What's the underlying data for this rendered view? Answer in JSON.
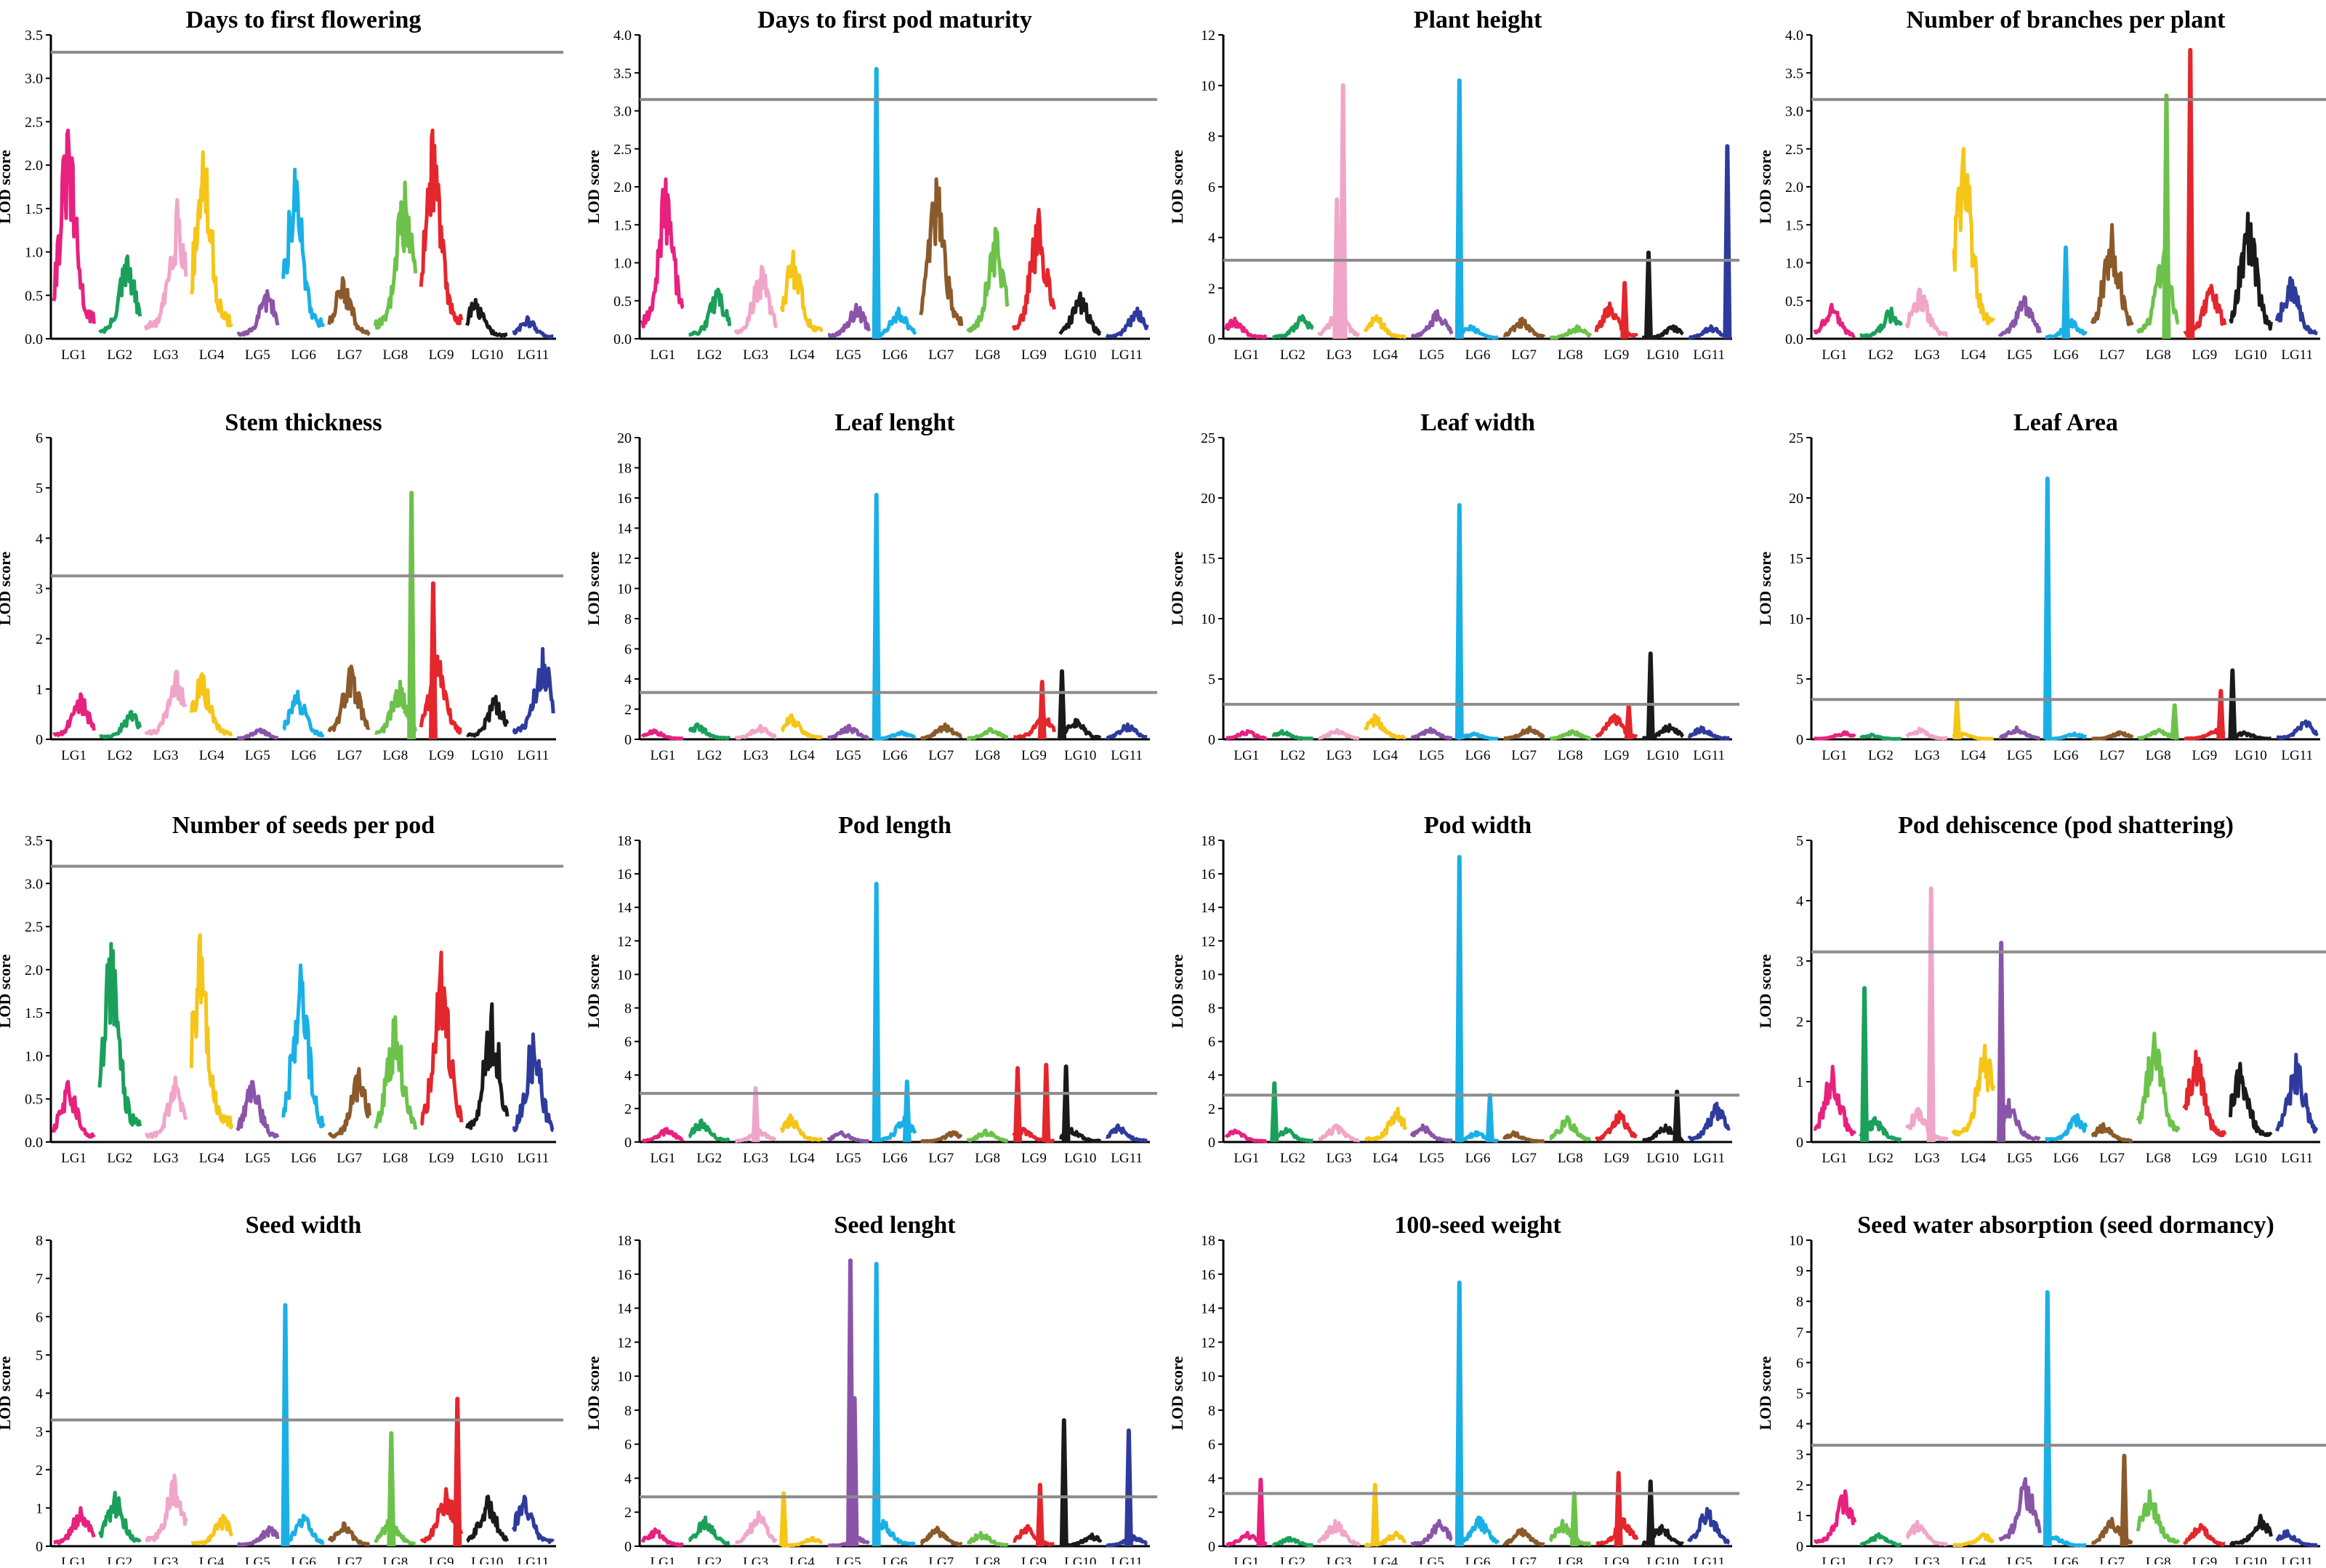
{
  "figure": {
    "ylabel": "LOD score",
    "linkage_groups": [
      "LG1",
      "LG2",
      "LG3",
      "LG4",
      "LG5",
      "LG6",
      "LG7",
      "LG8",
      "LG9",
      "LG10",
      "LG11"
    ],
    "lg_colors": [
      "#e8217f",
      "#1aa05a",
      "#f0a6c8",
      "#f5c518",
      "#8a55a8",
      "#1ab0e6",
      "#8b5a2b",
      "#6cc24a",
      "#e4262d",
      "#1a1a1a",
      "#2e3b9c"
    ],
    "threshold_color": "#8c8c8c"
  },
  "chart_data": [
    {
      "type": "line",
      "title": "Days to first flowering",
      "ylabel": "LOD score",
      "ylim": [
        0,
        3.5
      ],
      "yticks": [
        0,
        0.5,
        1.0,
        1.5,
        2.0,
        2.5,
        3.0,
        3.5
      ],
      "threshold": 3.3,
      "lg_max": [
        2.4,
        0.95,
        1.6,
        2.15,
        0.55,
        1.95,
        0.7,
        1.8,
        2.4,
        0.45,
        0.25
      ],
      "spikes": []
    },
    {
      "type": "line",
      "title": "Days to first pod maturity",
      "ylabel": "LOD score",
      "ylim": [
        0,
        4.0
      ],
      "yticks": [
        0,
        0.5,
        1.0,
        1.5,
        2.0,
        2.5,
        3.0,
        3.5,
        4.0
      ],
      "threshold": 3.15,
      "lg_max": [
        2.1,
        0.65,
        0.95,
        1.15,
        0.45,
        0.4,
        2.1,
        1.45,
        1.7,
        0.6,
        0.4
      ],
      "spikes": [
        {
          "lg": 6,
          "pos": 0.05,
          "value": 3.55
        }
      ]
    },
    {
      "type": "line",
      "title": "Plant height",
      "ylabel": "LOD score",
      "ylim": [
        0,
        12
      ],
      "yticks": [
        0,
        2,
        4,
        6,
        8,
        10,
        12
      ],
      "threshold": 3.1,
      "lg_max": [
        0.8,
        0.9,
        1.2,
        0.9,
        1.1,
        0.5,
        0.8,
        0.5,
        1.4,
        0.5,
        0.5
      ],
      "spikes": [
        {
          "lg": 3,
          "pos": 0.45,
          "value": 5.5
        },
        {
          "lg": 3,
          "pos": 0.6,
          "value": 10.0
        },
        {
          "lg": 6,
          "pos": 0.05,
          "value": 10.2
        },
        {
          "lg": 9,
          "pos": 0.7,
          "value": 2.2
        },
        {
          "lg": 10,
          "pos": 0.15,
          "value": 3.4
        },
        {
          "lg": 11,
          "pos": 0.95,
          "value": 7.6
        }
      ]
    },
    {
      "type": "line",
      "title": "Number of branches per plant",
      "ylabel": "LOD score",
      "ylim": [
        0,
        4.0
      ],
      "yticks": [
        0,
        0.5,
        1.0,
        1.5,
        2.0,
        2.5,
        3.0,
        3.5,
        4.0
      ],
      "threshold": 3.15,
      "lg_max": [
        0.45,
        0.4,
        0.65,
        2.5,
        0.55,
        0.25,
        1.5,
        1.15,
        0.7,
        1.65,
        0.8
      ],
      "spikes": [
        {
          "lg": 6,
          "pos": 0.5,
          "value": 1.2
        },
        {
          "lg": 8,
          "pos": 0.7,
          "value": 3.2
        },
        {
          "lg": 9,
          "pos": 0.15,
          "value": 3.8
        }
      ]
    },
    {
      "type": "line",
      "title": "Stem thickness",
      "ylabel": "LOD score",
      "ylim": [
        0,
        6
      ],
      "yticks": [
        0,
        1,
        2,
        3,
        4,
        5,
        6
      ],
      "threshold": 3.25,
      "lg_max": [
        0.9,
        0.55,
        1.35,
        1.3,
        0.2,
        0.95,
        1.45,
        1.15,
        1.65,
        0.85,
        1.8
      ],
      "spikes": [
        {
          "lg": 8,
          "pos": 0.9,
          "value": 4.9
        },
        {
          "lg": 9,
          "pos": 0.3,
          "value": 3.1
        }
      ]
    },
    {
      "type": "line",
      "title": "Leaf lenght",
      "ylabel": "LOD score",
      "ylim": [
        0,
        20
      ],
      "yticks": [
        0,
        2,
        4,
        6,
        8,
        10,
        12,
        14,
        16,
        18,
        20
      ],
      "threshold": 3.1,
      "lg_max": [
        0.6,
        1.0,
        0.9,
        1.6,
        0.9,
        0.5,
        1.0,
        0.7,
        1.7,
        1.3,
        1.0
      ],
      "spikes": [
        {
          "lg": 6,
          "pos": 0.05,
          "value": 16.2
        },
        {
          "lg": 9,
          "pos": 0.7,
          "value": 3.8
        },
        {
          "lg": 10,
          "pos": 0.05,
          "value": 4.5
        }
      ]
    },
    {
      "type": "line",
      "title": "Leaf width",
      "ylabel": "LOD score",
      "ylim": [
        0,
        25
      ],
      "yticks": [
        0,
        5,
        10,
        15,
        20,
        25
      ],
      "threshold": 2.9,
      "lg_max": [
        0.7,
        0.7,
        0.8,
        2.0,
        0.9,
        0.5,
        1.0,
        0.7,
        2.0,
        1.2,
        1.0
      ],
      "spikes": [
        {
          "lg": 6,
          "pos": 0.05,
          "value": 19.4
        },
        {
          "lg": 9,
          "pos": 0.8,
          "value": 2.8
        },
        {
          "lg": 10,
          "pos": 0.2,
          "value": 7.1
        }
      ]
    },
    {
      "type": "line",
      "title": "Leaf Area",
      "ylabel": "LOD score",
      "ylim": [
        0,
        25
      ],
      "yticks": [
        0,
        5,
        10,
        15,
        20,
        25
      ],
      "threshold": 3.3,
      "lg_max": [
        0.6,
        0.4,
        0.9,
        0.5,
        1.0,
        0.5,
        0.6,
        0.8,
        0.8,
        0.6,
        1.5
      ],
      "spikes": [
        {
          "lg": 4,
          "pos": 0.1,
          "value": 3.1
        },
        {
          "lg": 6,
          "pos": 0.05,
          "value": 21.6
        },
        {
          "lg": 8,
          "pos": 0.9,
          "value": 2.8
        },
        {
          "lg": 9,
          "pos": 0.9,
          "value": 4.0
        },
        {
          "lg": 10,
          "pos": 0.05,
          "value": 5.7
        }
      ]
    },
    {
      "type": "line",
      "title": "Number of seeds per pod",
      "ylabel": "LOD score",
      "ylim": [
        0,
        3.5
      ],
      "yticks": [
        0,
        0.5,
        1.0,
        1.5,
        2.0,
        2.5,
        3.0,
        3.5
      ],
      "threshold": 3.2,
      "lg_max": [
        0.7,
        2.3,
        0.75,
        2.4,
        0.7,
        2.05,
        0.85,
        1.45,
        2.2,
        1.6,
        1.25
      ],
      "spikes": []
    },
    {
      "type": "line",
      "title": "Pod length",
      "ylabel": "LOD score",
      "ylim": [
        0,
        18
      ],
      "yticks": [
        0,
        2,
        4,
        6,
        8,
        10,
        12,
        14,
        16,
        18
      ],
      "threshold": 2.9,
      "lg_max": [
        0.8,
        1.3,
        0.7,
        1.6,
        0.6,
        1.5,
        0.6,
        0.7,
        0.8,
        0.8,
        1.0
      ],
      "spikes": [
        {
          "lg": 3,
          "pos": 0.5,
          "value": 3.2
        },
        {
          "lg": 6,
          "pos": 0.05,
          "value": 15.4
        },
        {
          "lg": 6,
          "pos": 0.8,
          "value": 3.6
        },
        {
          "lg": 9,
          "pos": 0.1,
          "value": 4.4
        },
        {
          "lg": 9,
          "pos": 0.8,
          "value": 4.6
        },
        {
          "lg": 10,
          "pos": 0.15,
          "value": 4.5
        }
      ]
    },
    {
      "type": "line",
      "title": "Pod width",
      "ylabel": "LOD score",
      "ylim": [
        0,
        18
      ],
      "yticks": [
        0,
        2,
        4,
        6,
        8,
        10,
        12,
        14,
        16,
        18
      ],
      "threshold": 2.8,
      "lg_max": [
        0.7,
        0.8,
        1.0,
        2.0,
        1.0,
        0.6,
        0.6,
        1.5,
        1.8,
        1.0,
        2.3
      ],
      "spikes": [
        {
          "lg": 2,
          "pos": 0.05,
          "value": 3.5
        },
        {
          "lg": 6,
          "pos": 0.05,
          "value": 17.0
        },
        {
          "lg": 6,
          "pos": 0.8,
          "value": 2.8
        },
        {
          "lg": 10,
          "pos": 0.85,
          "value": 3.0
        }
      ]
    },
    {
      "type": "line",
      "title": "Pod dehiscence (pod shattering)",
      "ylabel": "LOD score",
      "ylim": [
        0,
        5
      ],
      "yticks": [
        0,
        1,
        2,
        3,
        4,
        5
      ],
      "threshold": 3.15,
      "lg_max": [
        1.25,
        0.4,
        0.55,
        1.6,
        0.7,
        0.45,
        0.3,
        1.8,
        1.5,
        1.3,
        1.45
      ],
      "spikes": [
        {
          "lg": 2,
          "pos": 0.1,
          "value": 2.55
        },
        {
          "lg": 3,
          "pos": 0.6,
          "value": 4.2
        },
        {
          "lg": 5,
          "pos": 0.05,
          "value": 3.3
        }
      ]
    },
    {
      "type": "line",
      "title": "Seed width",
      "ylabel": "LOD score",
      "ylim": [
        0,
        8
      ],
      "yticks": [
        0,
        1,
        2,
        3,
        4,
        5,
        6,
        7,
        8
      ],
      "threshold": 3.3,
      "lg_max": [
        1.0,
        1.4,
        1.85,
        0.8,
        0.5,
        0.8,
        0.6,
        0.7,
        1.5,
        1.3,
        1.3
      ],
      "spikes": [
        {
          "lg": 6,
          "pos": 0.05,
          "value": 6.3
        },
        {
          "lg": 8,
          "pos": 0.4,
          "value": 2.95
        },
        {
          "lg": 9,
          "pos": 0.9,
          "value": 3.85
        }
      ]
    },
    {
      "type": "line",
      "title": "Seed lenght",
      "ylabel": "LOD score",
      "ylim": [
        0,
        18
      ],
      "yticks": [
        0,
        2,
        4,
        6,
        8,
        10,
        12,
        14,
        16,
        18
      ],
      "threshold": 2.9,
      "lg_max": [
        1.0,
        1.7,
        2.0,
        0.5,
        0.5,
        1.5,
        1.1,
        0.8,
        1.2,
        0.7,
        0.6
      ],
      "spikes": [
        {
          "lg": 4,
          "pos": 0.05,
          "value": 3.1
        },
        {
          "lg": 5,
          "pos": 0.55,
          "value": 16.8
        },
        {
          "lg": 5,
          "pos": 0.65,
          "value": 8.7
        },
        {
          "lg": 6,
          "pos": 0.05,
          "value": 16.6
        },
        {
          "lg": 9,
          "pos": 0.65,
          "value": 3.6
        },
        {
          "lg": 10,
          "pos": 0.1,
          "value": 7.4
        },
        {
          "lg": 11,
          "pos": 0.55,
          "value": 6.8
        }
      ]
    },
    {
      "type": "line",
      "title": "100-seed weight",
      "ylabel": "LOD score",
      "ylim": [
        0,
        18
      ],
      "yticks": [
        0,
        2,
        4,
        6,
        8,
        10,
        12,
        14,
        16,
        18
      ],
      "threshold": 3.1,
      "lg_max": [
        0.8,
        0.5,
        1.5,
        0.8,
        1.5,
        1.7,
        1.0,
        1.5,
        1.6,
        1.2,
        2.2
      ],
      "spikes": [
        {
          "lg": 1,
          "pos": 0.85,
          "value": 3.9
        },
        {
          "lg": 4,
          "pos": 0.25,
          "value": 3.6
        },
        {
          "lg": 6,
          "pos": 0.05,
          "value": 15.5
        },
        {
          "lg": 8,
          "pos": 0.6,
          "value": 3.1
        },
        {
          "lg": 9,
          "pos": 0.55,
          "value": 4.3
        },
        {
          "lg": 10,
          "pos": 0.2,
          "value": 3.8
        }
      ]
    },
    {
      "type": "line",
      "title": "Seed water absorption (seed dormancy)",
      "ylabel": "LOD score",
      "ylim": [
        0,
        10
      ],
      "yticks": [
        0,
        1,
        2,
        3,
        4,
        5,
        6,
        7,
        8,
        9,
        10
      ],
      "threshold": 3.3,
      "lg_max": [
        1.8,
        0.4,
        0.8,
        0.4,
        2.2,
        0.3,
        0.9,
        1.8,
        0.7,
        1.0,
        0.5
      ],
      "spikes": [
        {
          "lg": 6,
          "pos": 0.05,
          "value": 8.3
        },
        {
          "lg": 7,
          "pos": 0.8,
          "value": 2.95
        }
      ]
    }
  ]
}
